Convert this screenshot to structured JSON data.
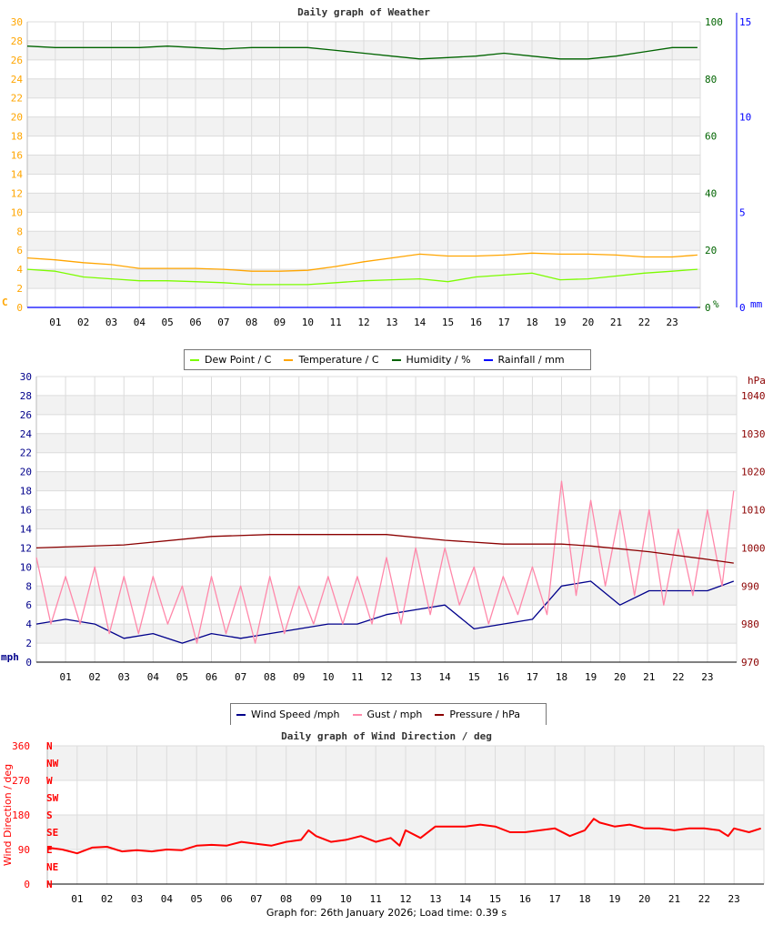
{
  "chart_data": [
    {
      "type": "line",
      "title": "Daily graph of Weather",
      "xlabel": "",
      "x_ticks": [
        "01",
        "02",
        "03",
        "04",
        "05",
        "06",
        "07",
        "08",
        "09",
        "10",
        "11",
        "12",
        "13",
        "14",
        "15",
        "16",
        "17",
        "18",
        "19",
        "20",
        "21",
        "22",
        "23"
      ],
      "xlim": [
        0,
        24
      ],
      "grid": true,
      "legend_position": "bottom",
      "axes": {
        "left": {
          "label": "C",
          "range": [
            0,
            30
          ],
          "ticks": [
            0,
            2,
            4,
            6,
            8,
            10,
            12,
            14,
            16,
            18,
            20,
            22,
            24,
            26,
            28,
            30
          ],
          "color": "#FFA500"
        },
        "right1": {
          "label": "%",
          "range": [
            0,
            100
          ],
          "ticks": [
            0,
            20,
            40,
            60,
            80,
            100
          ],
          "color": "#006400"
        },
        "right2": {
          "label": "mm",
          "range": [
            0,
            15
          ],
          "ticks": [
            0,
            5,
            10,
            15
          ],
          "color": "#0000FF"
        }
      },
      "series": [
        {
          "name": "Dew Point / C",
          "axis": "left",
          "color": "#7CFC00",
          "x": [
            0,
            1,
            2,
            3,
            4,
            5,
            6,
            7,
            8,
            9,
            10,
            11,
            12,
            13,
            14,
            15,
            16,
            17,
            18,
            19,
            20,
            21,
            22,
            23,
            23.9
          ],
          "y": [
            4.0,
            3.8,
            3.2,
            3.0,
            2.8,
            2.8,
            2.7,
            2.6,
            2.4,
            2.4,
            2.4,
            2.6,
            2.8,
            2.9,
            3.0,
            2.7,
            3.2,
            3.4,
            3.6,
            2.9,
            3.0,
            3.3,
            3.6,
            3.8,
            4.0
          ]
        },
        {
          "name": "Temperature / C",
          "axis": "left",
          "color": "#FFA500",
          "x": [
            0,
            1,
            2,
            3,
            4,
            5,
            6,
            7,
            8,
            9,
            10,
            11,
            12,
            13,
            14,
            15,
            16,
            17,
            18,
            19,
            20,
            21,
            22,
            23,
            23.9
          ],
          "y": [
            5.2,
            5.0,
            4.7,
            4.5,
            4.1,
            4.1,
            4.1,
            4.0,
            3.8,
            3.8,
            3.9,
            4.3,
            4.8,
            5.2,
            5.6,
            5.4,
            5.4,
            5.5,
            5.7,
            5.6,
            5.6,
            5.5,
            5.3,
            5.3,
            5.5
          ]
        },
        {
          "name": "Humidity / %",
          "axis": "right1",
          "color": "#006400",
          "x": [
            0,
            1,
            2,
            3,
            4,
            5,
            6,
            7,
            8,
            9,
            10,
            11,
            12,
            13,
            14,
            15,
            16,
            17,
            18,
            19,
            20,
            21,
            22,
            23,
            23.9
          ],
          "y": [
            91.5,
            91,
            91,
            91,
            91,
            91.5,
            91,
            90.5,
            91,
            91,
            91,
            90,
            89,
            88,
            87,
            87.5,
            88,
            89,
            88,
            87,
            87,
            88,
            89.5,
            91,
            91
          ]
        },
        {
          "name": "Rainfall / mm",
          "axis": "right2",
          "color": "#0000FF",
          "x": [
            0,
            23.9
          ],
          "y": [
            0,
            0
          ]
        }
      ]
    },
    {
      "type": "line",
      "title": "",
      "x_ticks": [
        "01",
        "02",
        "03",
        "04",
        "05",
        "06",
        "07",
        "08",
        "09",
        "10",
        "11",
        "12",
        "13",
        "14",
        "15",
        "16",
        "17",
        "18",
        "19",
        "20",
        "21",
        "22",
        "23"
      ],
      "xlim": [
        0,
        24
      ],
      "grid": true,
      "legend_position": "bottom",
      "axes": {
        "left": {
          "label": "mph",
          "range": [
            0,
            30
          ],
          "ticks": [
            0,
            2,
            4,
            6,
            8,
            10,
            12,
            14,
            16,
            18,
            20,
            22,
            24,
            26,
            28,
            30
          ],
          "color": "#00008B"
        },
        "right1": {
          "label": "hPa",
          "range": [
            970,
            1045
          ],
          "ticks": [
            970,
            980,
            990,
            1000,
            1010,
            1020,
            1030,
            1040
          ],
          "color": "#8B0000"
        }
      },
      "series": [
        {
          "name": "Wind Speed /mph",
          "axis": "left",
          "color": "#00008B",
          "x": [
            0,
            1,
            2,
            3,
            4,
            5,
            6,
            7,
            8,
            9,
            10,
            11,
            12,
            13,
            14,
            15,
            16,
            17,
            18,
            19,
            20,
            21,
            22,
            23,
            23.9
          ],
          "y": [
            4,
            4.5,
            4,
            2.5,
            3,
            2,
            3,
            2.5,
            3,
            3.5,
            4,
            4,
            5,
            5.5,
            6,
            3.5,
            4,
            4.5,
            8,
            8.5,
            6,
            7.5,
            7.5,
            7.5,
            8.5
          ]
        },
        {
          "name": "Gust / mph",
          "axis": "left",
          "color": "#FF88AA",
          "x": [
            0,
            0.5,
            1,
            1.5,
            2,
            2.5,
            3,
            3.5,
            4,
            4.5,
            5,
            5.5,
            6,
            6.5,
            7,
            7.5,
            8,
            8.5,
            9,
            9.5,
            10,
            10.5,
            11,
            11.5,
            12,
            12.5,
            13,
            13.5,
            14,
            14.5,
            15,
            15.5,
            16,
            16.5,
            17,
            17.5,
            18,
            18.5,
            19,
            19.5,
            20,
            20.5,
            21,
            21.5,
            22,
            22.5,
            23,
            23.5,
            23.9
          ],
          "y": [
            11,
            4,
            9,
            4,
            10,
            3,
            9,
            3,
            9,
            4,
            8,
            2,
            9,
            3,
            8,
            2,
            9,
            3,
            8,
            4,
            9,
            4,
            9,
            4,
            11,
            4,
            12,
            5,
            12,
            6,
            10,
            4,
            9,
            5,
            10,
            5,
            19,
            7,
            17,
            8,
            16,
            7,
            16,
            6,
            14,
            7,
            16,
            8,
            18
          ]
        },
        {
          "name": "Pressure / hPa",
          "axis": "right1",
          "color": "#8B0000",
          "x": [
            0,
            3,
            6,
            8,
            12,
            14,
            16,
            18,
            19,
            21,
            23,
            23.9
          ],
          "y": [
            1000,
            1000.8,
            1003,
            1003.5,
            1003.5,
            1002,
            1001,
            1001,
            1000.5,
            999,
            997,
            996
          ]
        }
      ]
    },
    {
      "type": "line",
      "title": "Daily graph of Wind Direction / deg",
      "ylabel": "Wind Direction / deg",
      "x_ticks": [
        "01",
        "02",
        "03",
        "04",
        "05",
        "06",
        "07",
        "08",
        "09",
        "10",
        "11",
        "12",
        "13",
        "14",
        "15",
        "16",
        "17",
        "18",
        "19",
        "20",
        "21",
        "22",
        "23"
      ],
      "xlim": [
        0,
        24
      ],
      "grid": true,
      "axes": {
        "left": {
          "label": "",
          "range": [
            0,
            360
          ],
          "ticks": [
            0,
            90,
            180,
            270,
            360
          ],
          "color": "#FF0000"
        }
      },
      "compass_labels": [
        "N",
        "NE",
        "E",
        "SE",
        "S",
        "SW",
        "W",
        "NW",
        "N"
      ],
      "series": [
        {
          "name": "",
          "axis": "left",
          "color": "#FF0000",
          "x": [
            0,
            0.5,
            1,
            1.5,
            2,
            2.5,
            3,
            3.5,
            4,
            4.5,
            5,
            5.5,
            6,
            6.5,
            7,
            7.5,
            8,
            8.5,
            8.75,
            9,
            9.5,
            10,
            10.5,
            11,
            11.5,
            11.8,
            12,
            12.5,
            13,
            13.5,
            14,
            14.5,
            15,
            15.5,
            16,
            16.5,
            17,
            17.5,
            18,
            18.3,
            18.5,
            19,
            19.5,
            20,
            20.5,
            21,
            21.5,
            22,
            22.5,
            22.8,
            23,
            23.5,
            23.9
          ],
          "y": [
            95,
            90,
            80,
            95,
            97,
            85,
            88,
            85,
            90,
            88,
            100,
            102,
            100,
            110,
            105,
            100,
            110,
            115,
            140,
            125,
            110,
            115,
            125,
            110,
            120,
            100,
            140,
            120,
            150,
            150,
            150,
            155,
            150,
            135,
            135,
            140,
            145,
            125,
            140,
            170,
            160,
            150,
            155,
            145,
            145,
            140,
            145,
            145,
            140,
            125,
            145,
            135,
            145
          ]
        }
      ]
    }
  ],
  "footer": "Graph for: 26th January 2026; Load time: 0.39 s"
}
